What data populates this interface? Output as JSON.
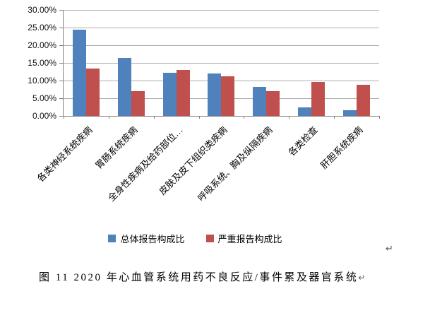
{
  "chart_data": {
    "type": "bar",
    "title": "",
    "categories": [
      "各类神经系统疾病",
      "胃肠系统疾病",
      "全身性疾病及给药部位…",
      "皮肤及皮下组织类疾病",
      "呼吸系统、胸及纵隔疾病",
      "各类检查",
      "肝胆系统疾病"
    ],
    "series": [
      {
        "name": "总体报告构成比",
        "color": "#4F81BD",
        "values": [
          24.4,
          16.3,
          12.2,
          12.0,
          8.2,
          2.4,
          1.6
        ]
      },
      {
        "name": "严重报告构成比",
        "color": "#C0504D",
        "values": [
          13.4,
          7.0,
          13.0,
          11.2,
          7.0,
          9.5,
          8.8
        ]
      }
    ],
    "xlabel": "",
    "ylabel": "",
    "ylim": [
      0,
      30
    ],
    "y_axis": {
      "min": 0,
      "max": 30,
      "step": 5,
      "tick_labels": [
        "30.00%",
        "25.00%",
        "20.00%",
        "15.00%",
        "10.00%",
        "5.00%",
        "0.00%"
      ]
    },
    "grid": true,
    "legend_position": "bottom-center"
  },
  "marks": {
    "chart_paragraph_mark": "↵",
    "caption_paragraph_mark": "↵"
  },
  "caption": "图 11  2020 年心血管系统用药不良反应/事件累及器官系统",
  "colors": {
    "bar_total": "#4F81BD",
    "bar_serious": "#C0504D",
    "gridline": "#adadad",
    "axis_line": "#808080",
    "text": "#000000",
    "paragraph_mark": "#595959"
  }
}
